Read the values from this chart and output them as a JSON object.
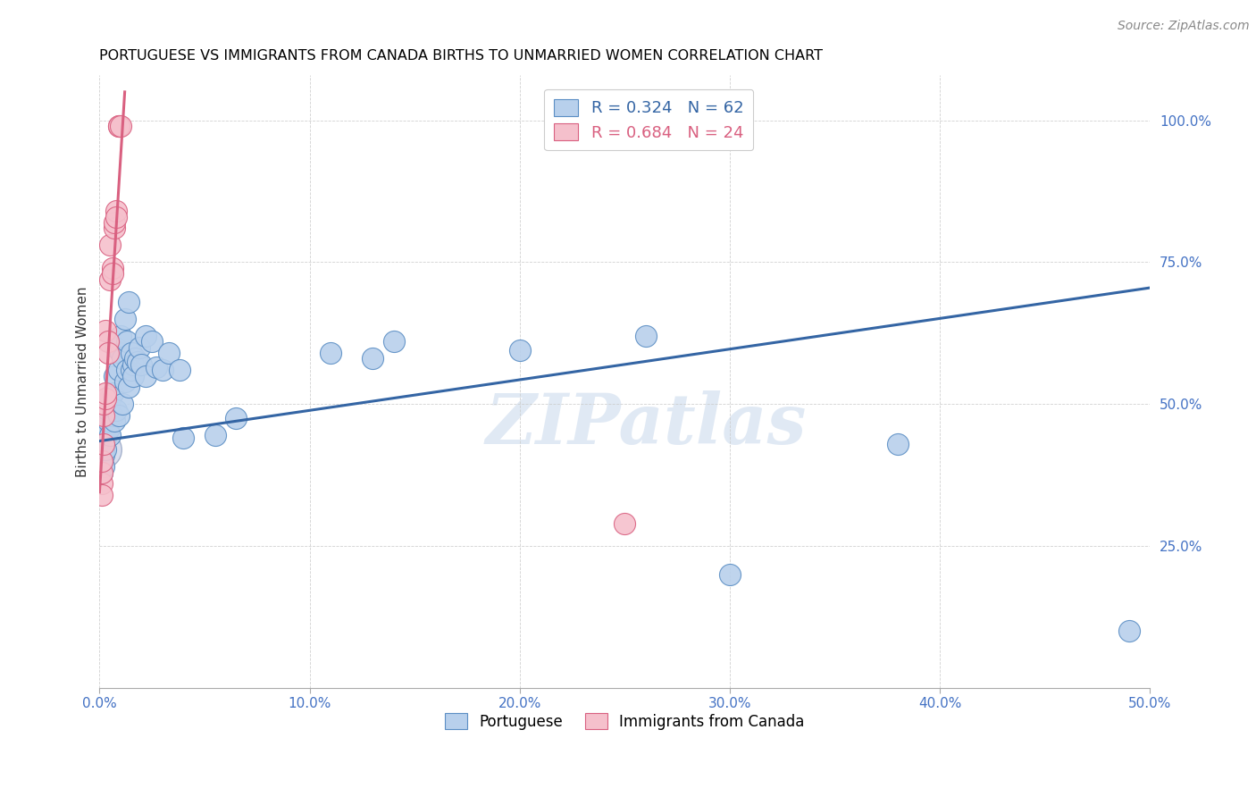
{
  "title": "PORTUGUESE VS IMMIGRANTS FROM CANADA BIRTHS TO UNMARRIED WOMEN CORRELATION CHART",
  "source": "Source: ZipAtlas.com",
  "ylabel": "Births to Unmarried Women",
  "legend_blue": "R = 0.324   N = 62",
  "legend_pink": "R = 0.684   N = 24",
  "legend_label1": "Portuguese",
  "legend_label2": "Immigrants from Canada",
  "watermark": "ZIPatlas",
  "blue_color": "#b8d0ec",
  "blue_edge_color": "#5b8ec4",
  "pink_color": "#f5c0cc",
  "pink_edge_color": "#d96080",
  "blue_line_color": "#3465a4",
  "pink_line_color": "#d96080",
  "blue_scatter": [
    [
      0.001,
      0.42
    ],
    [
      0.001,
      0.4
    ],
    [
      0.001,
      0.43
    ],
    [
      0.001,
      0.38
    ],
    [
      0.002,
      0.445
    ],
    [
      0.002,
      0.42
    ],
    [
      0.002,
      0.41
    ],
    [
      0.002,
      0.39
    ],
    [
      0.003,
      0.45
    ],
    [
      0.003,
      0.44
    ],
    [
      0.003,
      0.46
    ],
    [
      0.003,
      0.42
    ],
    [
      0.004,
      0.455
    ],
    [
      0.004,
      0.47
    ],
    [
      0.004,
      0.49
    ],
    [
      0.005,
      0.51
    ],
    [
      0.005,
      0.445
    ],
    [
      0.005,
      0.5
    ],
    [
      0.006,
      0.48
    ],
    [
      0.006,
      0.52
    ],
    [
      0.007,
      0.55
    ],
    [
      0.007,
      0.47
    ],
    [
      0.008,
      0.6
    ],
    [
      0.008,
      0.49
    ],
    [
      0.009,
      0.48
    ],
    [
      0.009,
      0.56
    ],
    [
      0.01,
      0.59
    ],
    [
      0.01,
      0.62
    ],
    [
      0.011,
      0.58
    ],
    [
      0.011,
      0.5
    ],
    [
      0.012,
      0.65
    ],
    [
      0.012,
      0.54
    ],
    [
      0.013,
      0.61
    ],
    [
      0.013,
      0.56
    ],
    [
      0.014,
      0.68
    ],
    [
      0.014,
      0.53
    ],
    [
      0.015,
      0.59
    ],
    [
      0.015,
      0.56
    ],
    [
      0.016,
      0.57
    ],
    [
      0.016,
      0.55
    ],
    [
      0.017,
      0.58
    ],
    [
      0.018,
      0.575
    ],
    [
      0.019,
      0.6
    ],
    [
      0.02,
      0.57
    ],
    [
      0.022,
      0.62
    ],
    [
      0.022,
      0.55
    ],
    [
      0.025,
      0.61
    ],
    [
      0.027,
      0.565
    ],
    [
      0.03,
      0.56
    ],
    [
      0.033,
      0.59
    ],
    [
      0.038,
      0.56
    ],
    [
      0.04,
      0.44
    ],
    [
      0.055,
      0.445
    ],
    [
      0.065,
      0.475
    ],
    [
      0.11,
      0.59
    ],
    [
      0.13,
      0.58
    ],
    [
      0.14,
      0.61
    ],
    [
      0.2,
      0.595
    ],
    [
      0.26,
      0.62
    ],
    [
      0.3,
      0.2
    ],
    [
      0.38,
      0.43
    ],
    [
      0.49,
      0.1
    ]
  ],
  "pink_scatter": [
    [
      0.001,
      0.36
    ],
    [
      0.001,
      0.38
    ],
    [
      0.001,
      0.34
    ],
    [
      0.001,
      0.4
    ],
    [
      0.002,
      0.43
    ],
    [
      0.002,
      0.48
    ],
    [
      0.002,
      0.5
    ],
    [
      0.003,
      0.51
    ],
    [
      0.003,
      0.52
    ],
    [
      0.003,
      0.63
    ],
    [
      0.004,
      0.61
    ],
    [
      0.004,
      0.59
    ],
    [
      0.005,
      0.78
    ],
    [
      0.005,
      0.72
    ],
    [
      0.006,
      0.74
    ],
    [
      0.006,
      0.73
    ],
    [
      0.007,
      0.81
    ],
    [
      0.007,
      0.82
    ],
    [
      0.008,
      0.84
    ],
    [
      0.008,
      0.83
    ],
    [
      0.009,
      0.99
    ],
    [
      0.009,
      0.99
    ],
    [
      0.01,
      0.99
    ],
    [
      0.25,
      0.29
    ]
  ],
  "blue_line_x": [
    0.0,
    0.5
  ],
  "blue_line_y": [
    0.435,
    0.705
  ],
  "pink_line_x": [
    0.0,
    0.012
  ],
  "pink_line_y": [
    0.345,
    1.05
  ],
  "xlim": [
    0.0,
    0.5
  ],
  "ylim": [
    0.0,
    1.08
  ],
  "xticks": [
    0.0,
    0.1,
    0.2,
    0.3,
    0.4,
    0.5
  ],
  "xticklabels": [
    "0.0%",
    "10.0%",
    "20.0%",
    "30.0%",
    "40.0%",
    "50.0%"
  ],
  "yticks": [
    0.25,
    0.5,
    0.75,
    1.0
  ],
  "yticklabels": [
    "25.0%",
    "50.0%",
    "75.0%",
    "100.0%"
  ]
}
